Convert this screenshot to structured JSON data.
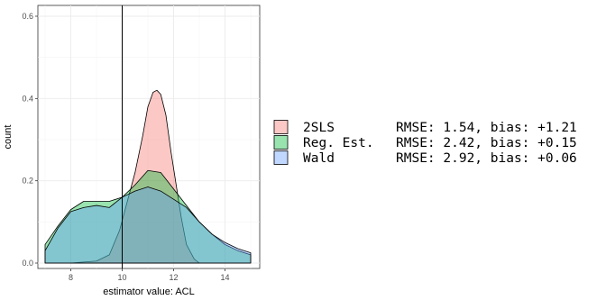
{
  "chart_data": {
    "type": "area",
    "xlabel": "estimator value: ACL",
    "ylabel": "count",
    "xlim": [
      7,
      15
    ],
    "ylim": [
      0,
      0.62
    ],
    "x_ticks": [
      8,
      10,
      12,
      14
    ],
    "y_ticks": [
      0.0,
      0.2,
      0.4,
      0.6
    ],
    "x_tick_labels": [
      "8",
      "10",
      "12",
      "14"
    ],
    "y_tick_labels": [
      "0.0",
      "0.2",
      "0.4",
      "0.6"
    ],
    "grid": true,
    "vline": 10,
    "legend_position": "right",
    "series": [
      {
        "name": "2SLS",
        "stat": "RMSE: 1.54, bias: +1.21",
        "color": "#F8766D",
        "x": [
          8,
          9.0,
          9.5,
          9.9,
          10.2,
          10.5,
          10.8,
          11.0,
          11.2,
          11.35,
          11.5,
          11.7,
          11.9,
          12.1,
          12.3,
          12.5,
          12.8,
          13.0
        ],
        "y": [
          0.0,
          0.005,
          0.02,
          0.08,
          0.15,
          0.22,
          0.31,
          0.38,
          0.415,
          0.42,
          0.41,
          0.36,
          0.27,
          0.19,
          0.11,
          0.045,
          0.01,
          0.0
        ]
      },
      {
        "name": "Reg. Est.",
        "stat": "RMSE: 2.42, bias: +0.15",
        "color": "#00BA38",
        "x": [
          7,
          7.5,
          8.0,
          8.5,
          9.0,
          9.5,
          10.0,
          10.5,
          11.0,
          11.5,
          12.0,
          12.5,
          13.0,
          13.5,
          14.0,
          14.5,
          15.0
        ],
        "y": [
          0.045,
          0.09,
          0.13,
          0.15,
          0.15,
          0.15,
          0.16,
          0.19,
          0.225,
          0.22,
          0.18,
          0.14,
          0.1,
          0.07,
          0.045,
          0.03,
          0.02
        ]
      },
      {
        "name": "Wald",
        "stat": "RMSE: 2.92, bias: +0.06",
        "color": "#619CFF",
        "x": [
          7,
          7.5,
          8.0,
          8.5,
          9.0,
          9.5,
          10.0,
          10.5,
          11.0,
          11.5,
          12.0,
          12.5,
          13.0,
          13.5,
          14.0,
          14.5,
          15.0
        ],
        "y": [
          0.03,
          0.085,
          0.125,
          0.135,
          0.14,
          0.135,
          0.16,
          0.175,
          0.185,
          0.175,
          0.155,
          0.135,
          0.1,
          0.07,
          0.05,
          0.035,
          0.025
        ]
      }
    ]
  }
}
